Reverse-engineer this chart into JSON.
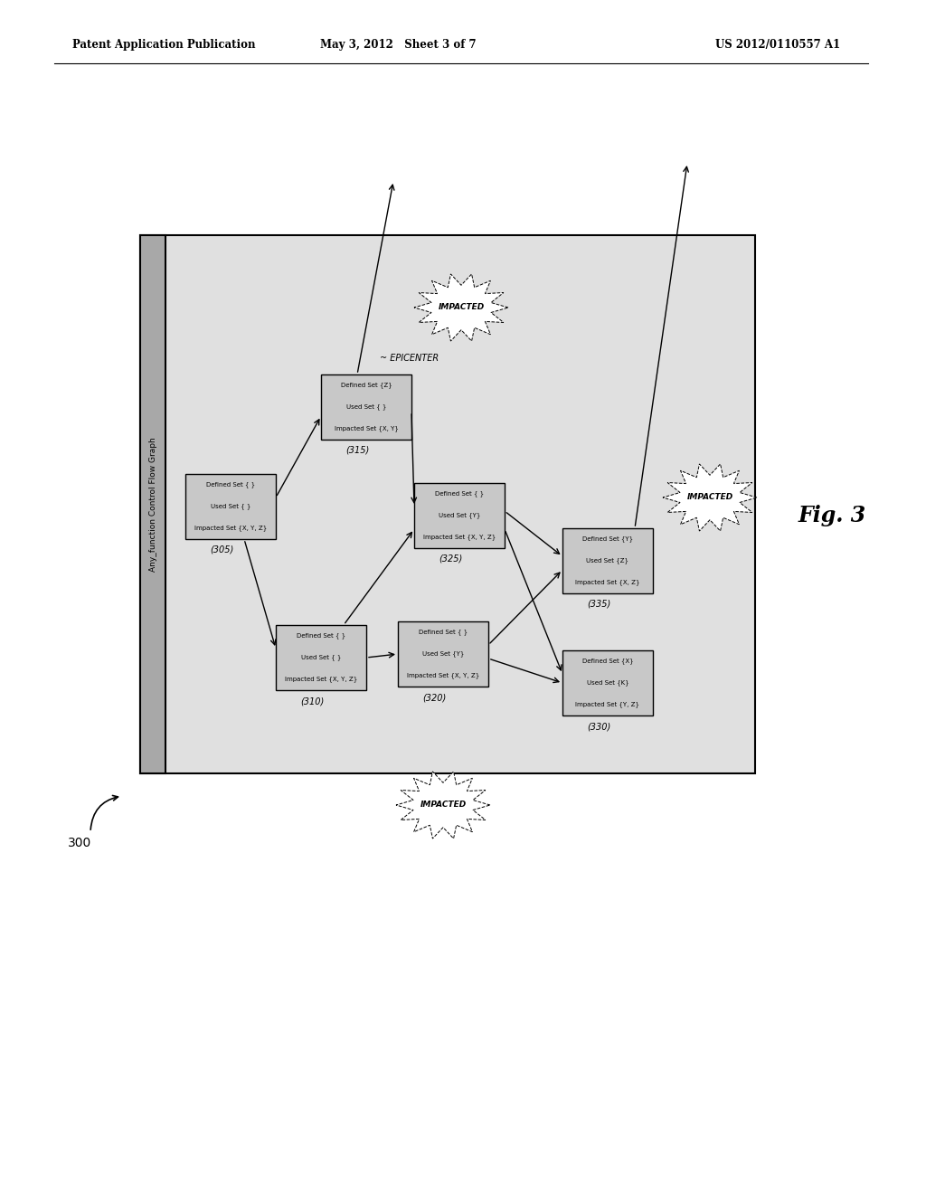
{
  "header_left": "Patent Application Publication",
  "header_mid": "May 3, 2012   Sheet 3 of 7",
  "header_right": "US 2012/0110557 A1",
  "fig_label": "Fig. 3",
  "diagram_label": "300",
  "outer_label": "Any_function Control Flow Graph",
  "epicenter_label": "EPICENTER",
  "node_lines": {
    "305": [
      "Defined Set { }",
      "Used Set { }",
      "Impacted Set {X, Y, Z}"
    ],
    "310": [
      "Defined Set { }",
      "Used Set { }",
      "Impacted Set {X, Y, Z}"
    ],
    "315": [
      "Defined Set {Z}",
      "Used Set { }",
      "Impacted Set {X, Y}"
    ],
    "320": [
      "Defined Set { }",
      "Used Set {Y}",
      "Impacted Set {X, Y, Z}"
    ],
    "325": [
      "Defined Set { }",
      "Used Set {Y}",
      "Impacted Set {X, Y, Z}"
    ],
    "330": [
      "Defined Set {X}",
      "Used Set {K}",
      "Impacted Set {Y, Z}"
    ],
    "335": [
      "Defined Set {Y}",
      "Used Set {Z}",
      "Impacted Set {X, Z}"
    ]
  },
  "background_color": "#ffffff",
  "diagram_bg": "#e0e0e0",
  "sidebar_bg": "#a8a8a8",
  "box_color": "#c8c8c8"
}
